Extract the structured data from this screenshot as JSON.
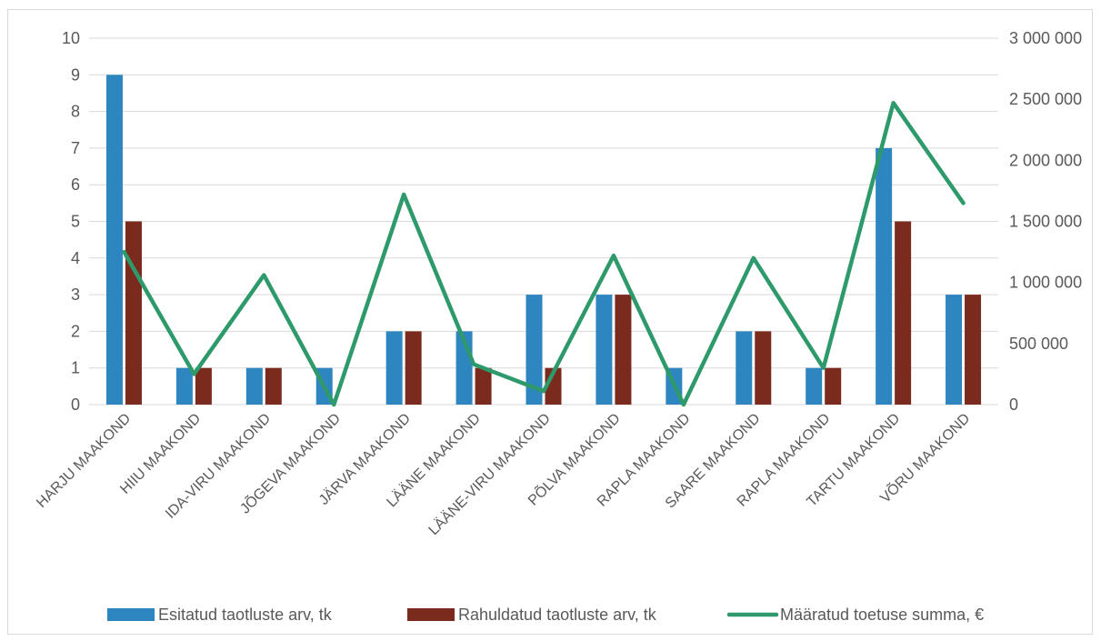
{
  "chart_data": {
    "type": "bar",
    "categories": [
      "HARJU MAAKOND",
      "HIIU MAAKOND",
      "IDA-VIRU MAAKOND",
      "JÕGEVA MAAKOND",
      "JÄRVA MAAKOND",
      "LÄÄNE MAAKOND",
      "LÄÄNE-VIRU MAAKOND",
      "PÕLVA MAAKOND",
      "RAPLA MAAKOND",
      "SAARE MAAKOND",
      "RAPLA MAAKOND",
      "TARTU MAAKOND",
      "VÕRU MAAKOND"
    ],
    "series": [
      {
        "name": "Esitatud taotluste arv, tk",
        "type": "bar",
        "axis": "left",
        "color": "#2e86c1",
        "values": [
          9,
          1,
          1,
          1,
          2,
          2,
          3,
          3,
          1,
          2,
          1,
          7,
          3
        ]
      },
      {
        "name": "Rahuldatud taotluste arv, tk",
        "type": "bar",
        "axis": "left",
        "color": "#7b2a1e",
        "values": [
          5,
          1,
          1,
          0,
          2,
          1,
          1,
          3,
          0,
          2,
          1,
          5,
          3
        ]
      },
      {
        "name": "Määratud toetuse summa, €",
        "type": "line",
        "axis": "right",
        "color": "#2e9a6b",
        "values": [
          1250000,
          250000,
          1060000,
          0,
          1720000,
          330000,
          110000,
          1220000,
          0,
          1200000,
          300000,
          2470000,
          1650000
        ]
      }
    ],
    "y_left": {
      "min": 0,
      "max": 10,
      "step": 1,
      "tick_labels": [
        "0",
        "1",
        "2",
        "3",
        "4",
        "5",
        "6",
        "7",
        "8",
        "9",
        "10"
      ]
    },
    "y_right": {
      "min": 0,
      "max": 3000000,
      "step": 500000,
      "tick_labels": [
        "0",
        "500 000",
        "1 000 000",
        "1 500 000",
        "2 000 000",
        "2 500 000",
        "3 000 000"
      ]
    },
    "grid": true,
    "legend_position": "bottom"
  }
}
